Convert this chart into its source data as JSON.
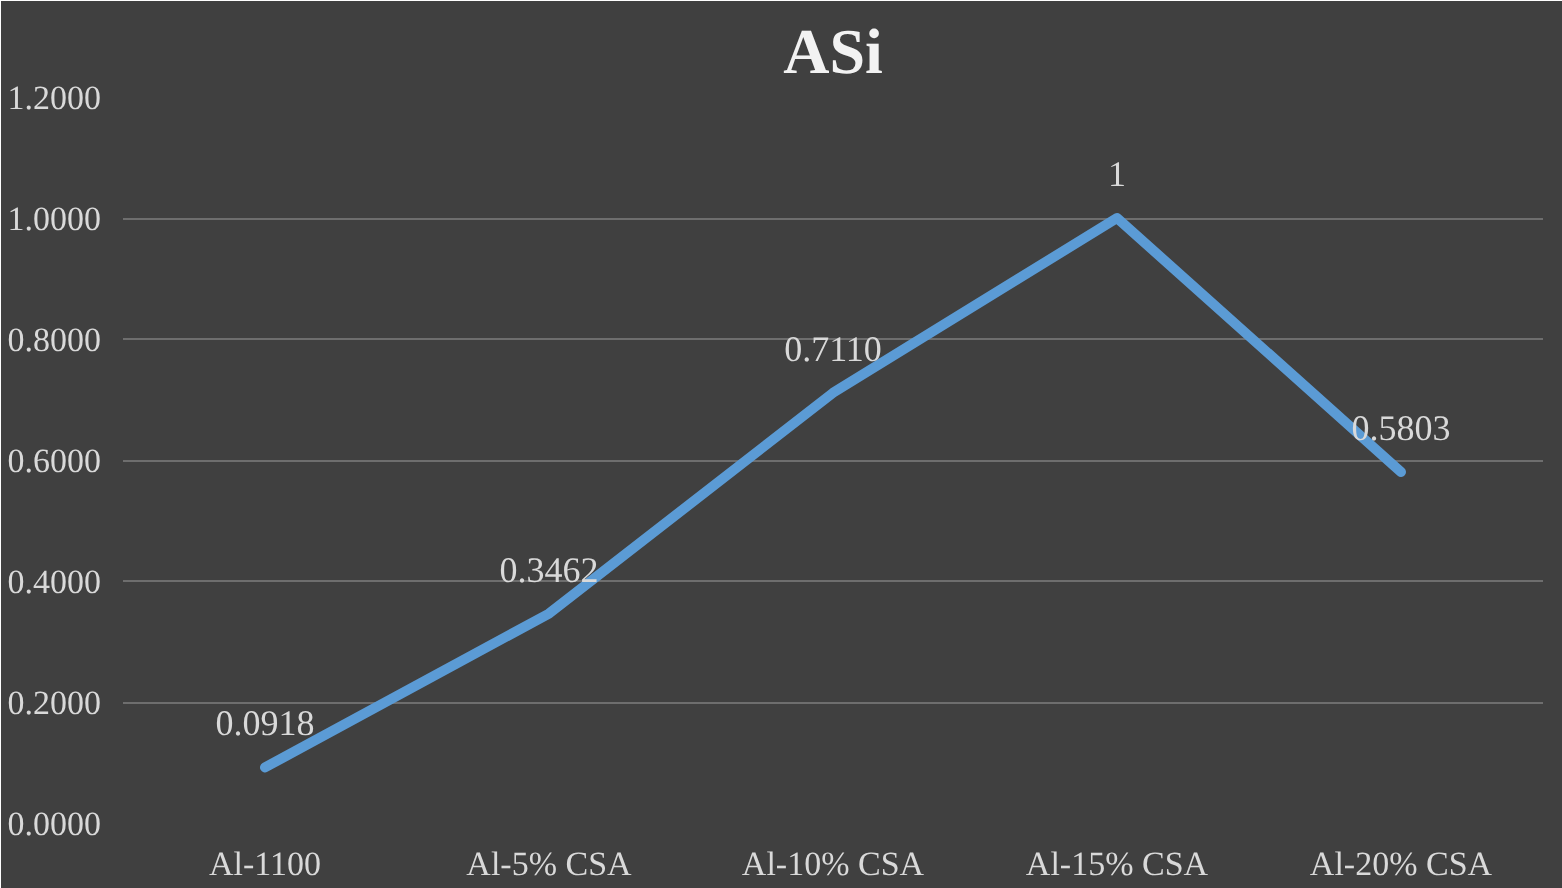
{
  "chart_data": {
    "type": "line",
    "title": "ASi",
    "categories": [
      "Al-1100",
      "Al-5% CSA",
      "Al-10% CSA",
      "Al-15% CSA",
      "Al-20% CSA"
    ],
    "series": [
      {
        "color": "#5b9bd5",
        "values": [
          0.0918,
          0.3462,
          0.711,
          1,
          0.5803
        ],
        "value_labels": [
          "0.0918",
          "0.3462",
          "0.7110",
          "1",
          "0.5803"
        ]
      }
    ],
    "ylim": [
      0,
      1.2
    ],
    "yticks": [
      {
        "value": 0,
        "label": "0.0000"
      },
      {
        "value": 0.2,
        "label": "0.2000"
      },
      {
        "value": 0.4,
        "label": "0.4000"
      },
      {
        "value": 0.6,
        "label": "0.6000"
      },
      {
        "value": 0.8,
        "label": "0.8000"
      },
      {
        "value": 1.0,
        "label": "1.0000"
      },
      {
        "value": 1.2,
        "label": "1.2000"
      }
    ],
    "grid": "y",
    "marker": "none",
    "line_style": "solid"
  }
}
